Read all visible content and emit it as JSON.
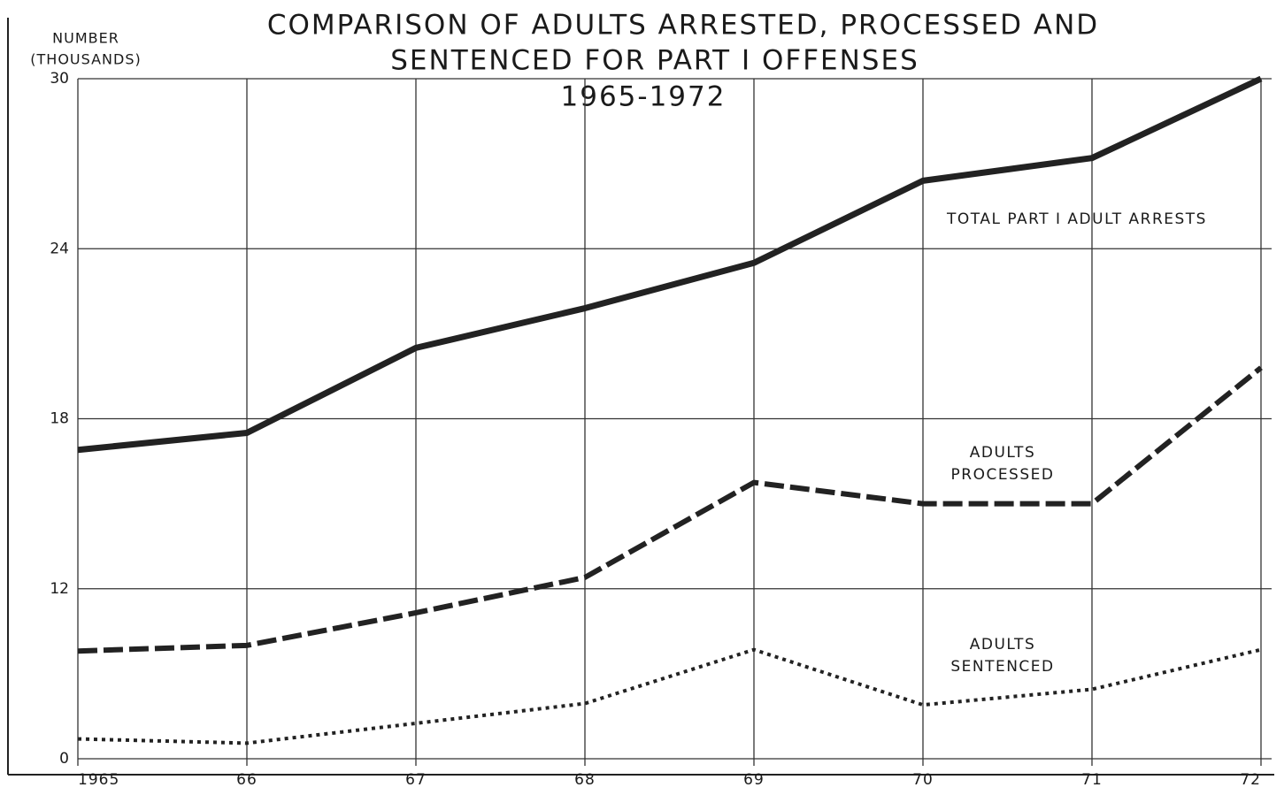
{
  "chart_data": {
    "type": "line",
    "title": [
      "COMPARISON OF ADULTS ARRESTED, PROCESSED AND",
      "SENTENCED FOR PART I OFFENSES",
      "1965-1972"
    ],
    "ylabel": [
      "NUMBER",
      "(THOUSANDS)"
    ],
    "categories": [
      "1965",
      "66",
      "67",
      "68",
      "69",
      "70",
      "71",
      "72"
    ],
    "series": [
      {
        "name": "TOTAL PART I ADULT ARRESTS",
        "color": "#222",
        "style": "solid",
        "values": [
          16.9,
          17.5,
          20.5,
          21.9,
          23.5,
          26.4,
          27.2,
          30
        ]
      },
      {
        "name": "ADULTS PROCESSED",
        "color": "#222",
        "style": "dashed",
        "values": [
          7.6,
          8.0,
          10.3,
          12.4,
          15.75,
          15.0,
          15.0,
          19.8
        ]
      },
      {
        "name": "ADULTS SENTENCED",
        "color": "#222",
        "style": "dotted",
        "values": [
          1.4,
          1.1,
          2.5,
          3.9,
          7.7,
          3.8,
          4.9,
          7.7
        ]
      }
    ],
    "ylim": [
      0,
      30
    ],
    "yticks": [
      0,
      12,
      18,
      24,
      30
    ],
    "axis_break": true,
    "grid": true
  }
}
